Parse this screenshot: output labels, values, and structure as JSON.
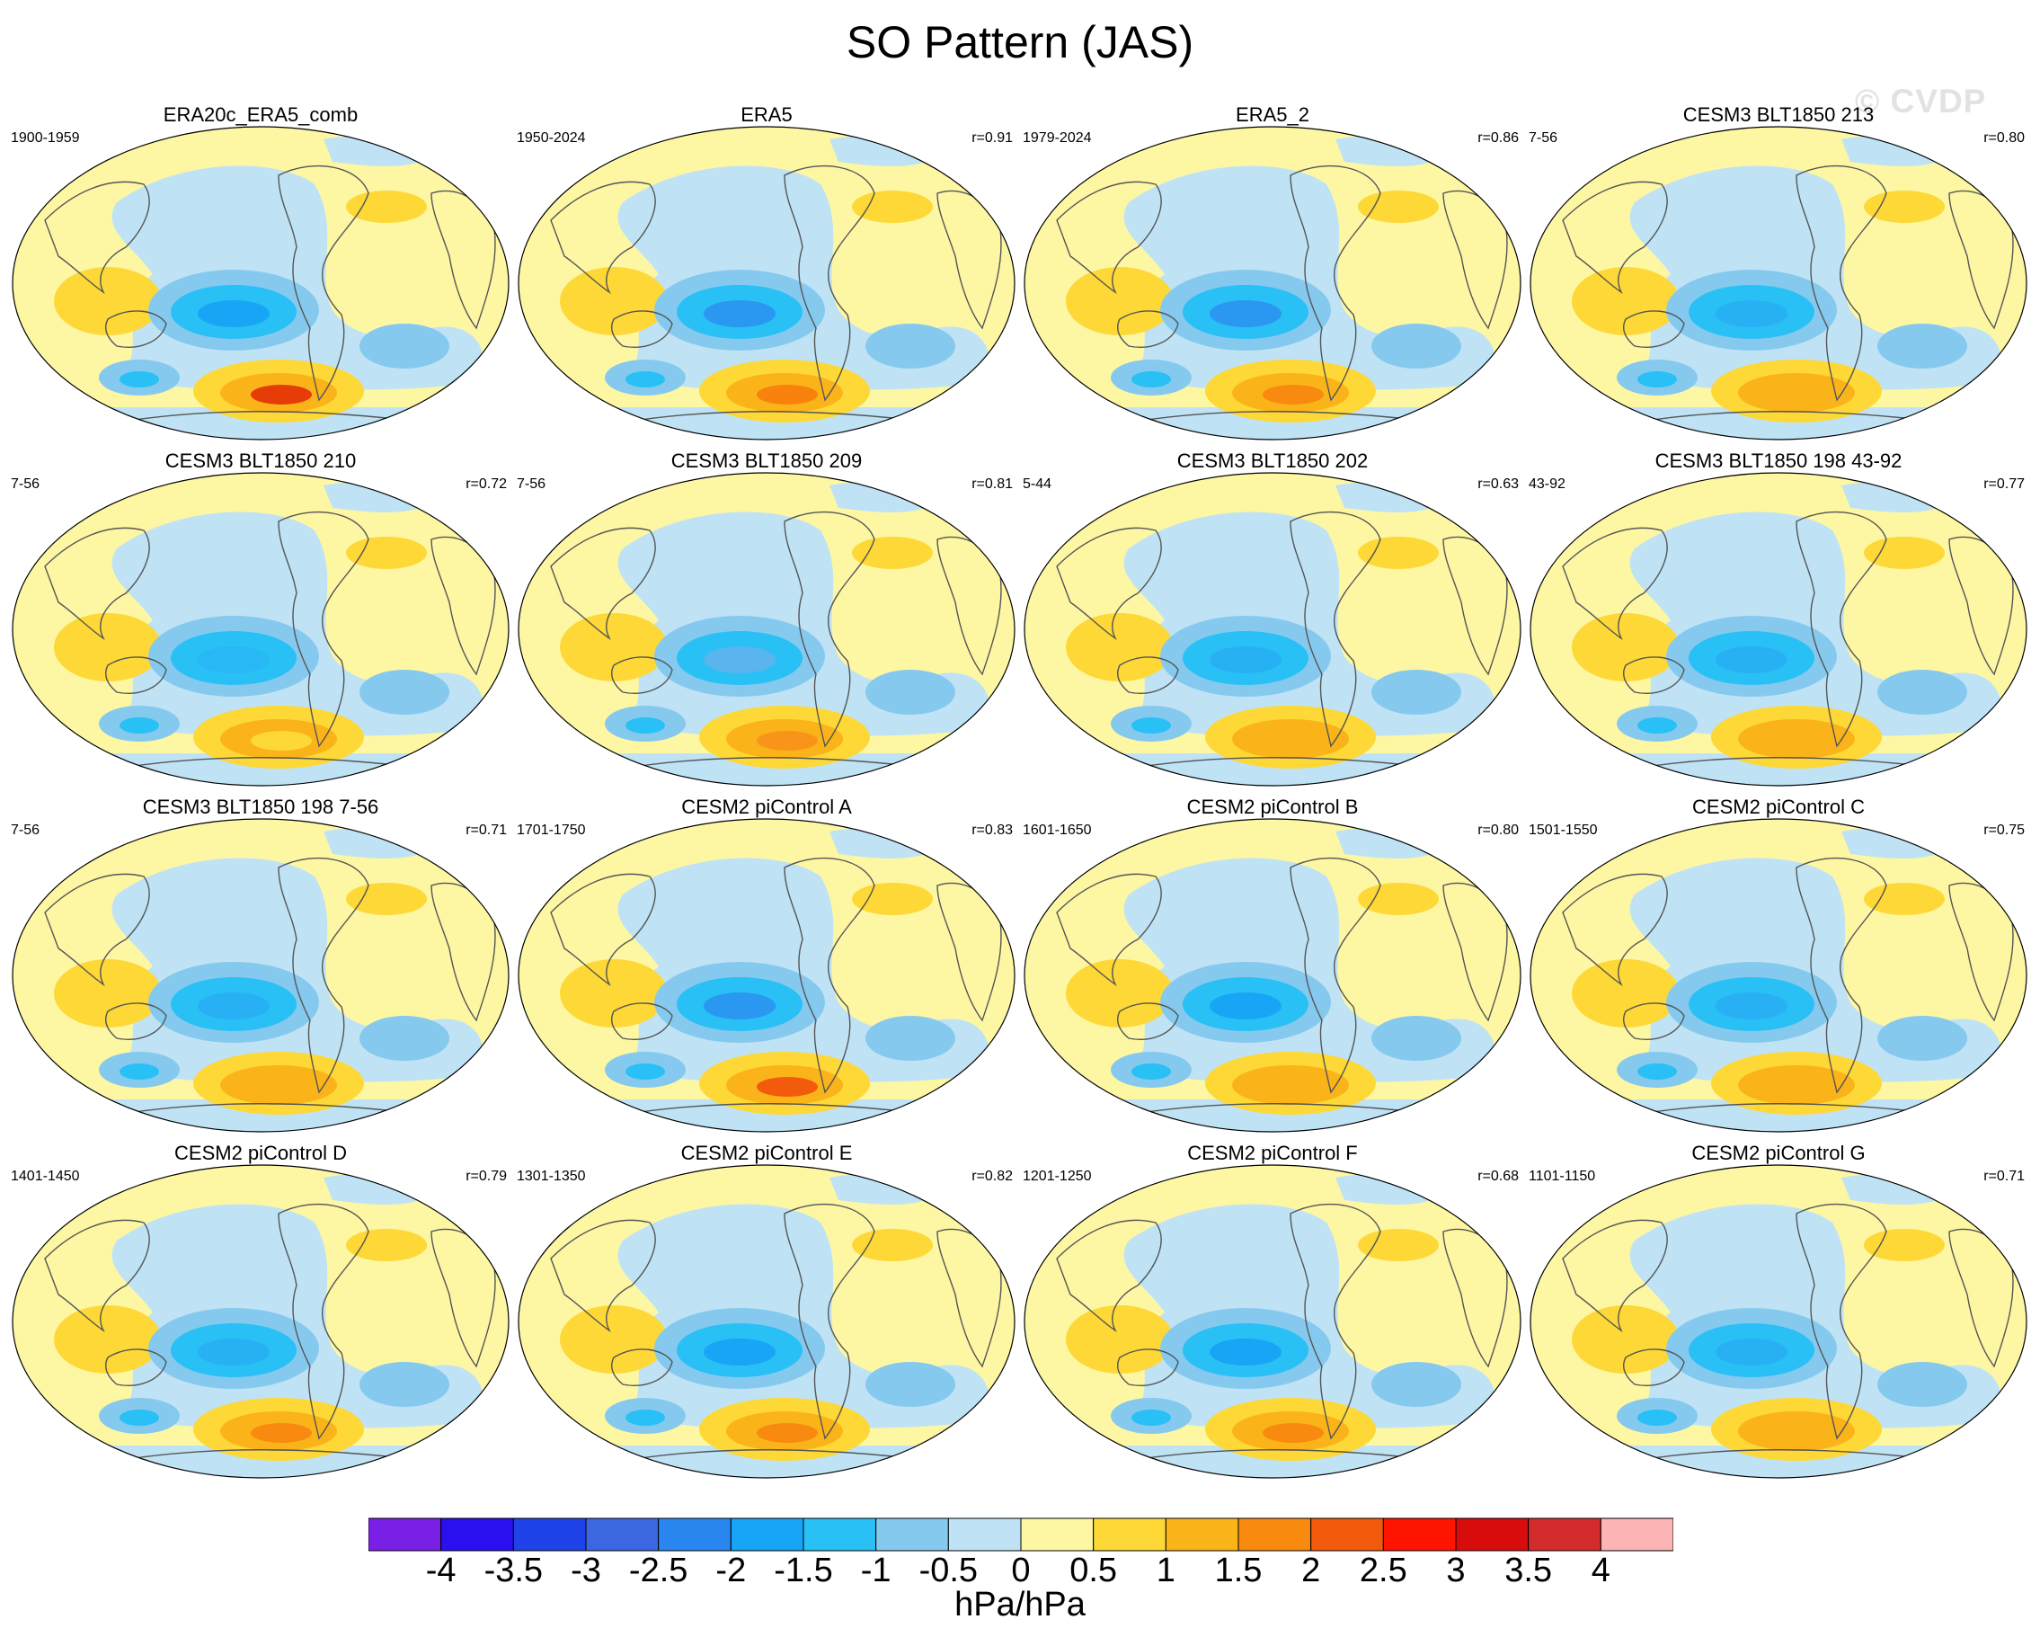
{
  "chart_data": {
    "type": "heatmap",
    "title": "SO Pattern (JAS)",
    "watermark": "© CVDP",
    "units": "hPa/hPa",
    "projection": "global map (Pacific-centered)",
    "colorbar": {
      "labels": [
        "-4",
        "-3.5",
        "-3",
        "-2.5",
        "-2",
        "-1.5",
        "-1",
        "-0.5",
        "0",
        "0.5",
        "1",
        "1.5",
        "2",
        "2.5",
        "3",
        "3.5",
        "4"
      ],
      "colors": [
        "#7a1fe6",
        "#2a10ee",
        "#1f43e8",
        "#3c67e0",
        "#2a87f0",
        "#18a5f5",
        "#28c0f5",
        "#86c9ee",
        "#bfe3f5",
        "#fdf7a4",
        "#fdd836",
        "#fbb31a",
        "#f88a10",
        "#f25a0c",
        "#ff1400",
        "#d80c0c",
        "#d42c2c",
        "#fdb4b4"
      ]
    },
    "panels": [
      {
        "title": "ERA20c_ERA5_comb",
        "period": "1900-1959",
        "r": "",
        "southern": "#e53c08",
        "tropic": "#18a5f5"
      },
      {
        "title": "ERA5",
        "period": "1950-2024",
        "r": "r=0.91",
        "southern": "#f8820c",
        "tropic": "#2a97f0"
      },
      {
        "title": "ERA5_2",
        "period": "1979-2024",
        "r": "r=0.86",
        "southern": "#f88a10",
        "tropic": "#2a97f0"
      },
      {
        "title": "CESM3 BLT1850 213",
        "period": "7-56",
        "r": "r=0.80",
        "southern": "#fbb31a",
        "tropic": "#28b0f5"
      },
      {
        "title": "CESM3 BLT1850 210",
        "period": "7-56",
        "r": "r=0.72",
        "southern": "#fdd836",
        "tropic": "#28b8f5"
      },
      {
        "title": "CESM3 BLT1850 209",
        "period": "7-56",
        "r": "r=0.81",
        "southern": "#f8941a",
        "tropic": "#5ab4ee"
      },
      {
        "title": "CESM3 BLT1850 202",
        "period": "5-44",
        "r": "r=0.63",
        "southern": "#fbb31a",
        "tropic": "#28b0f5"
      },
      {
        "title": "CESM3 BLT1850 198 43-92",
        "period": "43-92",
        "r": "r=0.77",
        "southern": "#fbb31a",
        "tropic": "#28b0f5"
      },
      {
        "title": "CESM3 BLT1850 198 7-56",
        "period": "7-56",
        "r": "r=0.71",
        "southern": "#fbb31a",
        "tropic": "#28b0f5"
      },
      {
        "title": "CESM2 piControl A",
        "period": "1701-1750",
        "r": "r=0.83",
        "southern": "#f25a0c",
        "tropic": "#2a97f0"
      },
      {
        "title": "CESM2 piControl B",
        "period": "1601-1650",
        "r": "r=0.80",
        "southern": "#fbb31a",
        "tropic": "#18a5f5"
      },
      {
        "title": "CESM2 piControl C",
        "period": "1501-1550",
        "r": "r=0.75",
        "southern": "#fbb31a",
        "tropic": "#28b0f5"
      },
      {
        "title": "CESM2 piControl D",
        "period": "1401-1450",
        "r": "r=0.79",
        "southern": "#f88a10",
        "tropic": "#28b0f5"
      },
      {
        "title": "CESM2 piControl E",
        "period": "1301-1350",
        "r": "r=0.82",
        "southern": "#f88a10",
        "tropic": "#18a5f5"
      },
      {
        "title": "CESM2 piControl F",
        "period": "1201-1250",
        "r": "r=0.68",
        "southern": "#f88a10",
        "tropic": "#18a5f5"
      },
      {
        "title": "CESM2 piControl G",
        "period": "1101-1150",
        "r": "r=0.71",
        "southern": "#fbb31a",
        "tropic": "#28b0f5"
      }
    ]
  }
}
